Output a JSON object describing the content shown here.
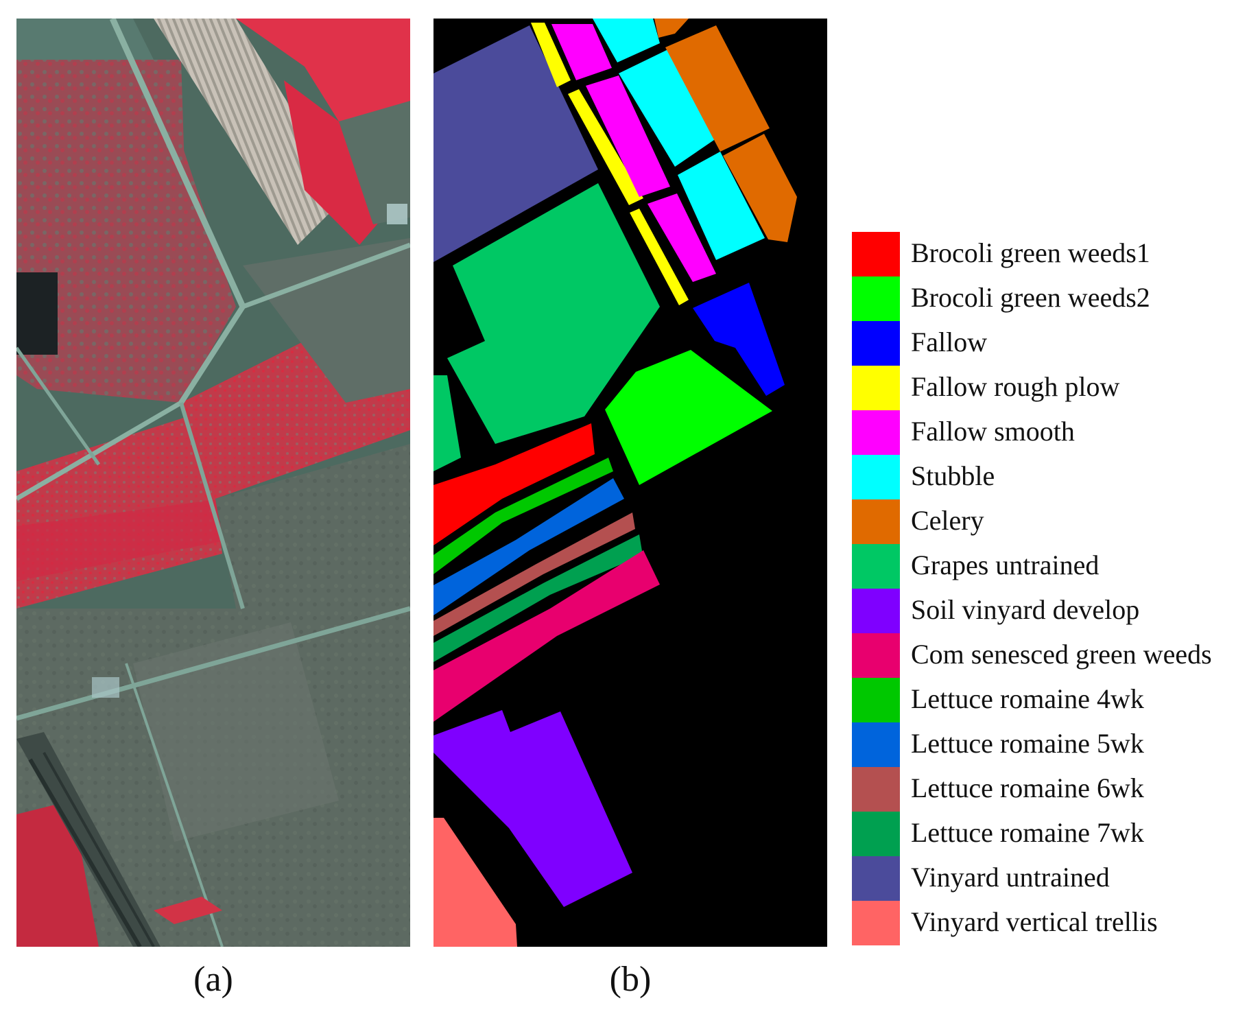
{
  "figure": {
    "captions": {
      "a": "(a)",
      "b": "(b)"
    },
    "panel_a": {
      "description_icon": "false-color-aerial-image"
    },
    "panel_b": {
      "background_color": "#000000"
    },
    "legend": [
      {
        "label": "Brocoli green weeds1",
        "color": "#FF0000"
      },
      {
        "label": "Brocoli green weeds2",
        "color": "#00FF00"
      },
      {
        "label": "Fallow",
        "color": "#0000FF"
      },
      {
        "label": "Fallow rough plow",
        "color": "#FFFF00"
      },
      {
        "label": "Fallow smooth",
        "color": "#FF00FF"
      },
      {
        "label": "Stubble",
        "color": "#00FFFF"
      },
      {
        "label": "Celery",
        "color": "#E06A00"
      },
      {
        "label": "Grapes untrained",
        "color": "#00C864"
      },
      {
        "label": "Soil vinyard develop",
        "color": "#7F00FF"
      },
      {
        "label": "Com senesced green weeds",
        "color": "#E8006E"
      },
      {
        "label": "Lettuce romaine 4wk",
        "color": "#00C800"
      },
      {
        "label": "Lettuce romaine 5wk",
        "color": "#0064DC"
      },
      {
        "label": "Lettuce romaine 6wk",
        "color": "#B45050"
      },
      {
        "label": "Lettuce romaine 7wk",
        "color": "#00A050"
      },
      {
        "label": "Vinyard untrained",
        "color": "#4B4B9B"
      },
      {
        "label": "Vinyard vertical trellis",
        "color": "#FF6464"
      }
    ]
  }
}
